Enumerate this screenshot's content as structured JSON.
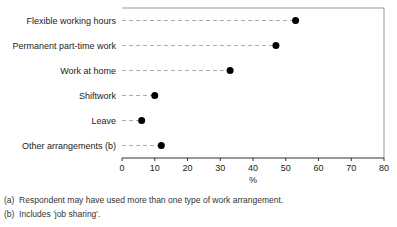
{
  "chart_data": {
    "type": "lollipop",
    "orientation": "horizontal",
    "categories": [
      "Flexible working hours",
      "Permanent part-time work",
      "Work at home",
      "Shiftwork",
      "Leave",
      "Other arrangements (b)"
    ],
    "values": [
      53,
      47,
      33,
      10,
      6,
      12
    ],
    "xlim": [
      0,
      80
    ],
    "xticks": [
      0,
      10,
      20,
      30,
      40,
      50,
      60,
      70,
      80
    ],
    "xlabel": "%",
    "color": "#000000",
    "marker": "circle",
    "line_style": "dashed",
    "grid": false,
    "annotations": [
      "(a)  Respondent may have used more than one type of work arrangement.",
      "(b)  Includes 'job sharing'."
    ]
  }
}
